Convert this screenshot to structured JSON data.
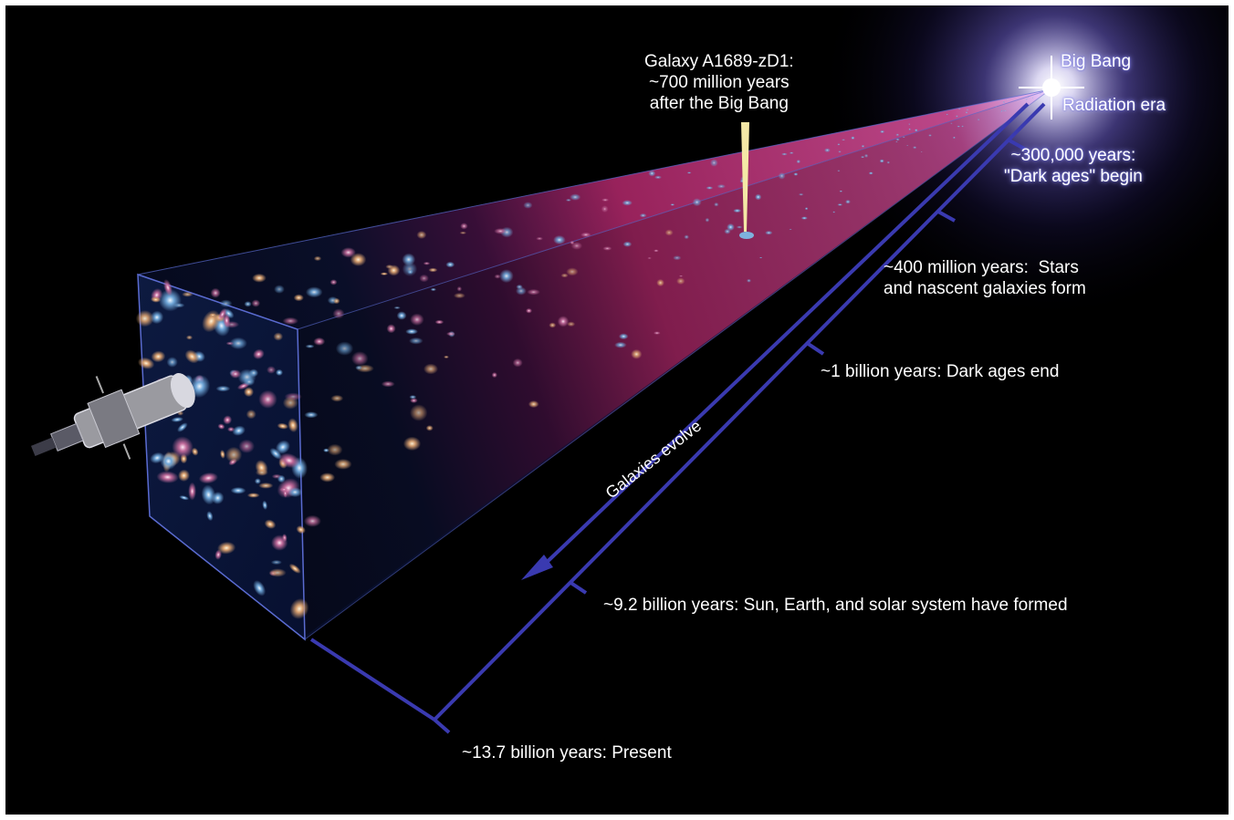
{
  "labels": {
    "galaxy_a1689": "Galaxy A1689-zD1:\n~700 million years\nafter the Big Bang",
    "big_bang": "Big Bang",
    "radiation_era": "Radiation era",
    "dark_ages_begin": "~300,000 years:\n\"Dark ages\" begin",
    "stars_form": "~400 million years:  Stars\nand nascent galaxies form",
    "dark_ages_end": "~1 billion years: Dark ages end",
    "galaxies_evolve": "Galaxies evolve",
    "solar_system": "~9.2 billion years: Sun, Earth, and solar system have formed",
    "present": "~13.7 billion years: Present"
  },
  "colors": {
    "background": "#000000",
    "cone": "#c0306a",
    "axis": "#3a3ab0",
    "text": "#ffffff"
  }
}
